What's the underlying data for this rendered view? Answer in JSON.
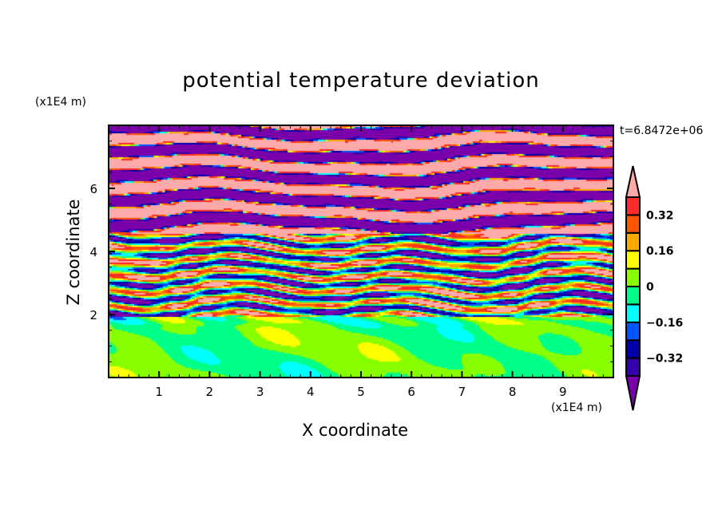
{
  "chart_data": {
    "type": "contour",
    "title": "potential temperature deviation",
    "xlabel": "X coordinate",
    "ylabel": "Z coordinate",
    "x_unit": "(x1E4 m)",
    "y_unit": "(x1E4 m)",
    "time_label": "t=6.8472e+06",
    "xlim": [
      0,
      10
    ],
    "ylim": [
      0,
      8
    ],
    "xticks": [
      "1",
      "2",
      "3",
      "4",
      "5",
      "6",
      "7",
      "8",
      "9"
    ],
    "yticks": [
      "2",
      "4",
      "6"
    ],
    "levels": [
      -0.4,
      -0.32,
      -0.24,
      -0.16,
      -0.08,
      0,
      0.08,
      0.16,
      0.24,
      0.32,
      0.4
    ],
    "colorbar_labels": [
      {
        "value": 0.32,
        "label": "0.32"
      },
      {
        "value": 0.16,
        "label": "0.16"
      },
      {
        "value": 0,
        "label": "0"
      },
      {
        "value": -0.16,
        "label": "-0.16"
      },
      {
        "value": -0.32,
        "label": "-0.32"
      }
    ],
    "colors": [
      "#7a00aa",
      "#3300aa",
      "#0000aa",
      "#0055ff",
      "#00ffff",
      "#00ff88",
      "#88ff00",
      "#ffff00",
      "#ffaa00",
      "#ff5500",
      "#ff2a2a",
      "#ffaaaa"
    ]
  }
}
